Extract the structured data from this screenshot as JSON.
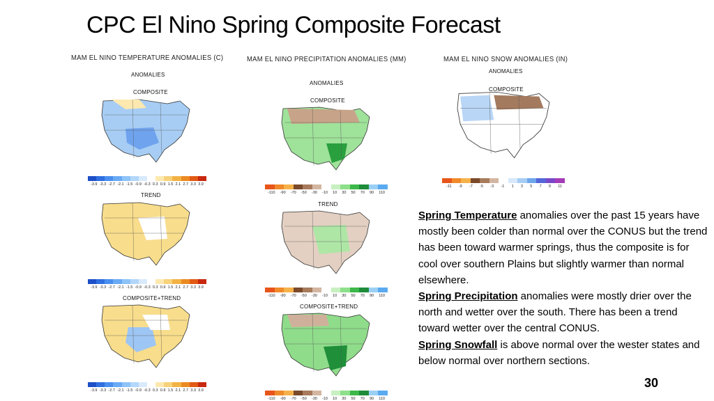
{
  "slide": {
    "title": "CPC  El Nino Spring  Composite Forecast",
    "number": "30"
  },
  "columns": [
    {
      "header": "MAM EL NINO TEMPERATURE ANOMALIES (C)",
      "subheader": "ANOMALIES",
      "panels": [
        "COMPOSITE",
        "TREND",
        "COMPOSITE+TREND"
      ],
      "scale_ticks": [
        "-3.9",
        "-3.3",
        "-2.7",
        "-2.1",
        "-1.5",
        "-0.9",
        "-0.3",
        "0.3",
        "0.9",
        "1.5",
        "2.1",
        "2.7",
        "3.3",
        "3.9"
      ],
      "scale_colors": [
        "#1d4fc7",
        "#2f6fe0",
        "#4a8ff0",
        "#6aaaf5",
        "#8ec3f8",
        "#b3d7fa",
        "#d8eafc",
        "#ffffff",
        "#fde9b0",
        "#f7d27a",
        "#f2b244",
        "#ec8a22",
        "#e25a15",
        "#c8280e"
      ]
    },
    {
      "header": "MAM EL NINO PRECIPITATION ANOMALIES (MM)",
      "subheader": "ANOMALIES",
      "panels": [
        "COMPOSITE",
        "TREND",
        "COMPOSITE+TREND"
      ],
      "scale_ticks": [
        "-110",
        "-90",
        "-70",
        "-50",
        "-30",
        "-10",
        "10",
        "30",
        "50",
        "70",
        "90",
        "110"
      ],
      "scale_colors": [
        "#e8551a",
        "#f08a2a",
        "#f6b24a",
        "#7a4a2a",
        "#a77b5b",
        "#d3b6a2",
        "#ffffff",
        "#c8f0c0",
        "#8ee08a",
        "#3db84a",
        "#1e8c3a",
        "#9bd0f5",
        "#5aaaf0"
      ]
    },
    {
      "header": "MAM EL NINO SNOW ANOMALIES (IN)",
      "subheader": "ANOMALIES",
      "panels": [
        "COMPOSITE"
      ],
      "scale_ticks": [
        "-11",
        "-9",
        "-7",
        "-5",
        "-3",
        "-1",
        "1",
        "3",
        "5",
        "7",
        "9",
        "11"
      ],
      "scale_colors": [
        "#e8551a",
        "#f08a2a",
        "#f6b24a",
        "#7a4a2a",
        "#a77b5b",
        "#d3b6a2",
        "#ffffff",
        "#d7e8fb",
        "#a8cdf5",
        "#6fa6ec",
        "#5566d8",
        "#7b47c9",
        "#a43bb8"
      ]
    }
  ],
  "description": [
    {
      "heading": "Spring Temperature",
      "text": " anomalies over the past 15 years have mostly been colder than normal over the CONUS but the trend has been toward warmer springs, thus the composite is for cool over southern Plains but slightly warmer than normal elsewhere."
    },
    {
      "heading": "Spring Precipitation",
      "text": " anomalies were mostly drier over the north and wetter over the south.  There has been a trend toward wetter over the central CONUS."
    },
    {
      "heading": "Spring Snowfall",
      "text": " is above normal over the wester states and below normal over northern sections."
    }
  ]
}
